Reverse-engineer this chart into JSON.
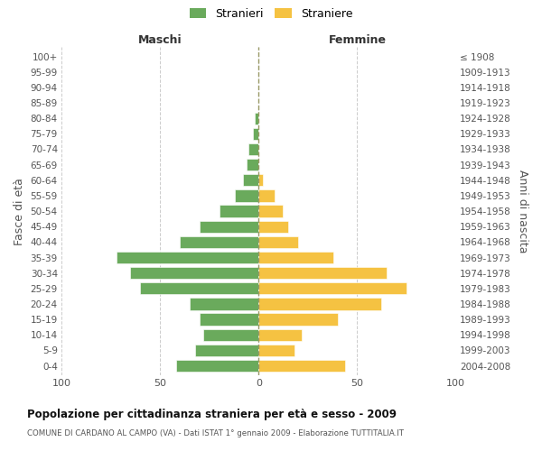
{
  "age_groups": [
    "100+",
    "95-99",
    "90-94",
    "85-89",
    "80-84",
    "75-79",
    "70-74",
    "65-69",
    "60-64",
    "55-59",
    "50-54",
    "45-49",
    "40-44",
    "35-39",
    "30-34",
    "25-29",
    "20-24",
    "15-19",
    "10-14",
    "5-9",
    "0-4"
  ],
  "birth_years": [
    "≤ 1908",
    "1909-1913",
    "1914-1918",
    "1919-1923",
    "1924-1928",
    "1929-1933",
    "1934-1938",
    "1939-1943",
    "1944-1948",
    "1949-1953",
    "1954-1958",
    "1959-1963",
    "1964-1968",
    "1969-1973",
    "1974-1978",
    "1979-1983",
    "1984-1988",
    "1989-1993",
    "1994-1998",
    "1999-2003",
    "2004-2008"
  ],
  "males": [
    0,
    0,
    0,
    0,
    2,
    3,
    5,
    6,
    8,
    12,
    20,
    30,
    40,
    72,
    65,
    60,
    35,
    30,
    28,
    32,
    42
  ],
  "females": [
    0,
    0,
    0,
    0,
    0,
    0,
    0,
    0,
    2,
    8,
    12,
    15,
    20,
    38,
    65,
    75,
    62,
    40,
    22,
    18,
    44
  ],
  "male_color": "#6aaa5c",
  "female_color": "#f5c242",
  "background_color": "#ffffff",
  "grid_color": "#cccccc",
  "title": "Popolazione per cittadinanza straniera per età e sesso - 2009",
  "subtitle": "COMUNE DI CARDANO AL CAMPO (VA) - Dati ISTAT 1° gennaio 2009 - Elaborazione TUTTITALIA.IT",
  "header_left": "Maschi",
  "header_right": "Femmine",
  "ylabel_left": "Fasce di età",
  "ylabel_right": "Anni di nascita",
  "legend_stranieri": "Stranieri",
  "legend_straniere": "Straniere",
  "xlim": 100
}
